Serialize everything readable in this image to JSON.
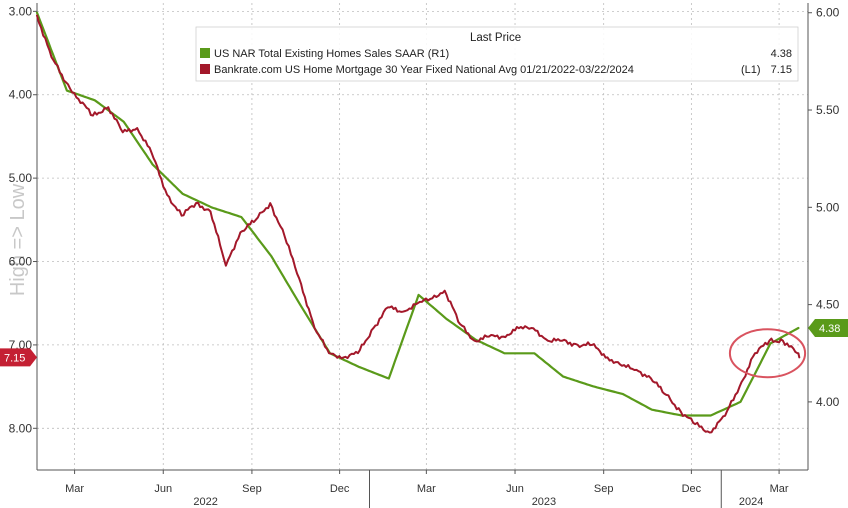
{
  "chart_data": {
    "type": "line",
    "legend": {
      "title": "Last Price",
      "placement": "top-right",
      "entries": [
        {
          "label": "US NAR Total Existing Homes Sales SAAR  (R1)",
          "value": "4.38",
          "color": "#5a9a1a"
        },
        {
          "label": "Bankrate.com US Home Mortgage 30 Year Fixed National Avg 01/21/2022-03/22/2024",
          "axis_tag": "(L1)",
          "value": "7.15",
          "color": "#a3182a"
        }
      ]
    },
    "left_axis": {
      "label": "High => Low",
      "inverted": true,
      "range": [
        2.9,
        8.5
      ],
      "ticks": [
        "3.00",
        "4.00",
        "5.00",
        "6.00",
        "7.00",
        "8.00"
      ],
      "last_value_badge": "7.15",
      "badge_color": "#c42033"
    },
    "right_axis": {
      "range": [
        3.65,
        6.05
      ],
      "ticks": [
        "4.00",
        "4.50",
        "5.00",
        "5.50",
        "6.00"
      ],
      "last_value_badge": "4.38",
      "badge_color": "#5a9a1a"
    },
    "x_axis": {
      "range": [
        "2022-01-21",
        "2024-03-31"
      ],
      "month_ticks": [
        {
          "date": "2022-03-01",
          "label": "Mar"
        },
        {
          "date": "2022-06-01",
          "label": "Jun"
        },
        {
          "date": "2022-09-01",
          "label": "Sep"
        },
        {
          "date": "2022-12-01",
          "label": "Dec"
        },
        {
          "date": "2023-03-01",
          "label": "Mar"
        },
        {
          "date": "2023-06-01",
          "label": "Jun"
        },
        {
          "date": "2023-09-01",
          "label": "Sep"
        },
        {
          "date": "2023-12-01",
          "label": "Dec"
        },
        {
          "date": "2024-03-01",
          "label": "Mar"
        }
      ],
      "year_labels": [
        {
          "date": "2022-07-15",
          "label": "2022"
        },
        {
          "date": "2023-07-01",
          "label": "2023"
        },
        {
          "date": "2024-02-01",
          "label": "2024"
        }
      ]
    },
    "grid": true,
    "annotation": {
      "type": "ellipse",
      "color": "#d9535f",
      "date_range": [
        "2024-01-10",
        "2024-03-28"
      ]
    },
    "series": [
      {
        "name": "US NAR Total Existing Homes Sales SAAR",
        "axis": "right",
        "color": "#5a9a1a",
        "points": [
          [
            "2022-01-21",
            6.0
          ],
          [
            "2022-02-21",
            5.6
          ],
          [
            "2022-03-22",
            5.55
          ],
          [
            "2022-04-21",
            5.44
          ],
          [
            "2022-05-21",
            5.22
          ],
          [
            "2022-06-21",
            5.07
          ],
          [
            "2022-07-21",
            5.0
          ],
          [
            "2022-08-21",
            4.95
          ],
          [
            "2022-09-21",
            4.75
          ],
          [
            "2022-10-21",
            4.5
          ],
          [
            "2022-11-21",
            4.25
          ],
          [
            "2022-12-21",
            4.18
          ],
          [
            "2023-01-21",
            4.12
          ],
          [
            "2023-02-21",
            4.55
          ],
          [
            "2023-03-21",
            4.43
          ],
          [
            "2023-04-21",
            4.32
          ],
          [
            "2023-05-21",
            4.25
          ],
          [
            "2023-06-21",
            4.25
          ],
          [
            "2023-07-21",
            4.13
          ],
          [
            "2023-08-21",
            4.08
          ],
          [
            "2023-09-21",
            4.04
          ],
          [
            "2023-10-21",
            3.96
          ],
          [
            "2023-11-21",
            3.93
          ],
          [
            "2023-12-21",
            3.93
          ],
          [
            "2024-01-21",
            4.0
          ],
          [
            "2024-02-21",
            4.3
          ],
          [
            "2024-03-21",
            4.38
          ]
        ]
      },
      {
        "name": "Bankrate.com US Home Mortgage 30 Year Fixed National Avg",
        "axis": "left",
        "color": "#a3182a",
        "points": [
          [
            "2022-01-21",
            3.05
          ],
          [
            "2022-02-05",
            3.55
          ],
          [
            "2022-02-20",
            3.85
          ],
          [
            "2022-03-05",
            4.05
          ],
          [
            "2022-03-20",
            4.25
          ],
          [
            "2022-04-05",
            4.15
          ],
          [
            "2022-04-20",
            4.45
          ],
          [
            "2022-05-05",
            4.4
          ],
          [
            "2022-05-20",
            4.7
          ],
          [
            "2022-06-05",
            5.2
          ],
          [
            "2022-06-20",
            5.45
          ],
          [
            "2022-07-05",
            5.3
          ],
          [
            "2022-07-20",
            5.4
          ],
          [
            "2022-08-05",
            6.05
          ],
          [
            "2022-08-20",
            5.65
          ],
          [
            "2022-09-05",
            5.5
          ],
          [
            "2022-09-20",
            5.3
          ],
          [
            "2022-10-05",
            5.7
          ],
          [
            "2022-10-20",
            6.2
          ],
          [
            "2022-11-05",
            6.8
          ],
          [
            "2022-11-20",
            7.1
          ],
          [
            "2022-12-05",
            7.15
          ],
          [
            "2022-12-20",
            7.1
          ],
          [
            "2023-01-05",
            6.8
          ],
          [
            "2023-01-20",
            6.55
          ],
          [
            "2023-02-05",
            6.6
          ],
          [
            "2023-02-20",
            6.5
          ],
          [
            "2023-03-05",
            6.45
          ],
          [
            "2023-03-20",
            6.35
          ],
          [
            "2023-04-05",
            6.75
          ],
          [
            "2023-04-20",
            6.95
          ],
          [
            "2023-05-05",
            6.9
          ],
          [
            "2023-05-20",
            6.9
          ],
          [
            "2023-06-05",
            6.8
          ],
          [
            "2023-06-20",
            6.8
          ],
          [
            "2023-07-05",
            6.95
          ],
          [
            "2023-07-20",
            6.95
          ],
          [
            "2023-08-05",
            7.0
          ],
          [
            "2023-08-20",
            7.0
          ],
          [
            "2023-09-05",
            7.15
          ],
          [
            "2023-09-20",
            7.25
          ],
          [
            "2023-10-05",
            7.3
          ],
          [
            "2023-10-20",
            7.4
          ],
          [
            "2023-11-05",
            7.6
          ],
          [
            "2023-11-20",
            7.8
          ],
          [
            "2023-12-05",
            7.95
          ],
          [
            "2023-12-20",
            8.05
          ],
          [
            "2024-01-05",
            7.85
          ],
          [
            "2024-01-20",
            7.5
          ],
          [
            "2024-02-05",
            7.1
          ],
          [
            "2024-02-20",
            6.95
          ],
          [
            "2024-03-05",
            6.95
          ],
          [
            "2024-03-20",
            7.1
          ],
          [
            "2024-03-22",
            7.15
          ]
        ]
      }
    ]
  }
}
